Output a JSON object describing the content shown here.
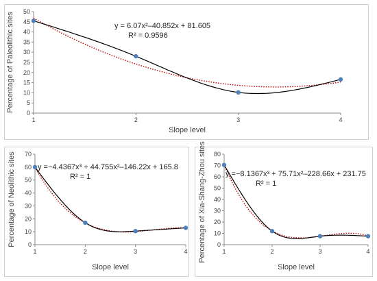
{
  "chart_data": [
    {
      "type": "scatter",
      "x": [
        1,
        2,
        3,
        4
      ],
      "y": [
        45.5,
        28,
        10.2,
        16.6
      ],
      "xticks": [
        "1",
        "2",
        "3",
        "4"
      ],
      "xlim": [
        1,
        4
      ],
      "ylim": [
        0,
        50
      ],
      "ytick_step": 5,
      "xlabel": "Slope level",
      "ylabel": "Percentage of Paleolithic sites",
      "equation": "y = 6.07x²–40.852x + 81.605",
      "r_squared": "R² = 0.9596",
      "trend_coefficients": [
        81.605,
        -40.852,
        6.07
      ],
      "point_color": "#4f81bd",
      "line_color": "#000000",
      "trend_color": "#c00000",
      "grid": false
    },
    {
      "type": "scatter",
      "x": [
        1,
        2,
        3,
        4
      ],
      "y": [
        60,
        17,
        10.5,
        13
      ],
      "xticks": [
        "1",
        "2",
        "3",
        "4"
      ],
      "xlim": [
        1,
        4
      ],
      "ylim": [
        0,
        70
      ],
      "ytick_step": 10,
      "xlabel": "Slope level",
      "ylabel": "Percentage of Neolithic sites",
      "equation": "y =−4.4367x³ + 44.755x²–146.22x + 165.8",
      "r_squared": "R² = 1",
      "trend_coefficients": [
        165.8,
        -146.22,
        44.755,
        -4.4367
      ],
      "point_color": "#4f81bd",
      "line_color": "#000000",
      "trend_color": "#c00000",
      "grid": false
    },
    {
      "type": "scatter",
      "x": [
        1,
        2,
        3,
        4
      ],
      "y": [
        70.5,
        12,
        7.5,
        7.5
      ],
      "xticks": [
        "1",
        "2",
        "3",
        "4"
      ],
      "xlim": [
        1,
        4
      ],
      "ylim": [
        0,
        80
      ],
      "ytick_step": 10,
      "xlabel": "Slope level",
      "ylabel": "Percentage of Xia-Shang-Zhou sites",
      "equation": "y =−8.1367x³ + 75.71x²–228.66x + 231.75",
      "r_squared": "R² = 1",
      "trend_coefficients": [
        231.75,
        -228.66,
        75.71,
        -8.1367
      ],
      "point_color": "#4f81bd",
      "line_color": "#000000",
      "trend_color": "#c00000",
      "grid": false
    }
  ]
}
